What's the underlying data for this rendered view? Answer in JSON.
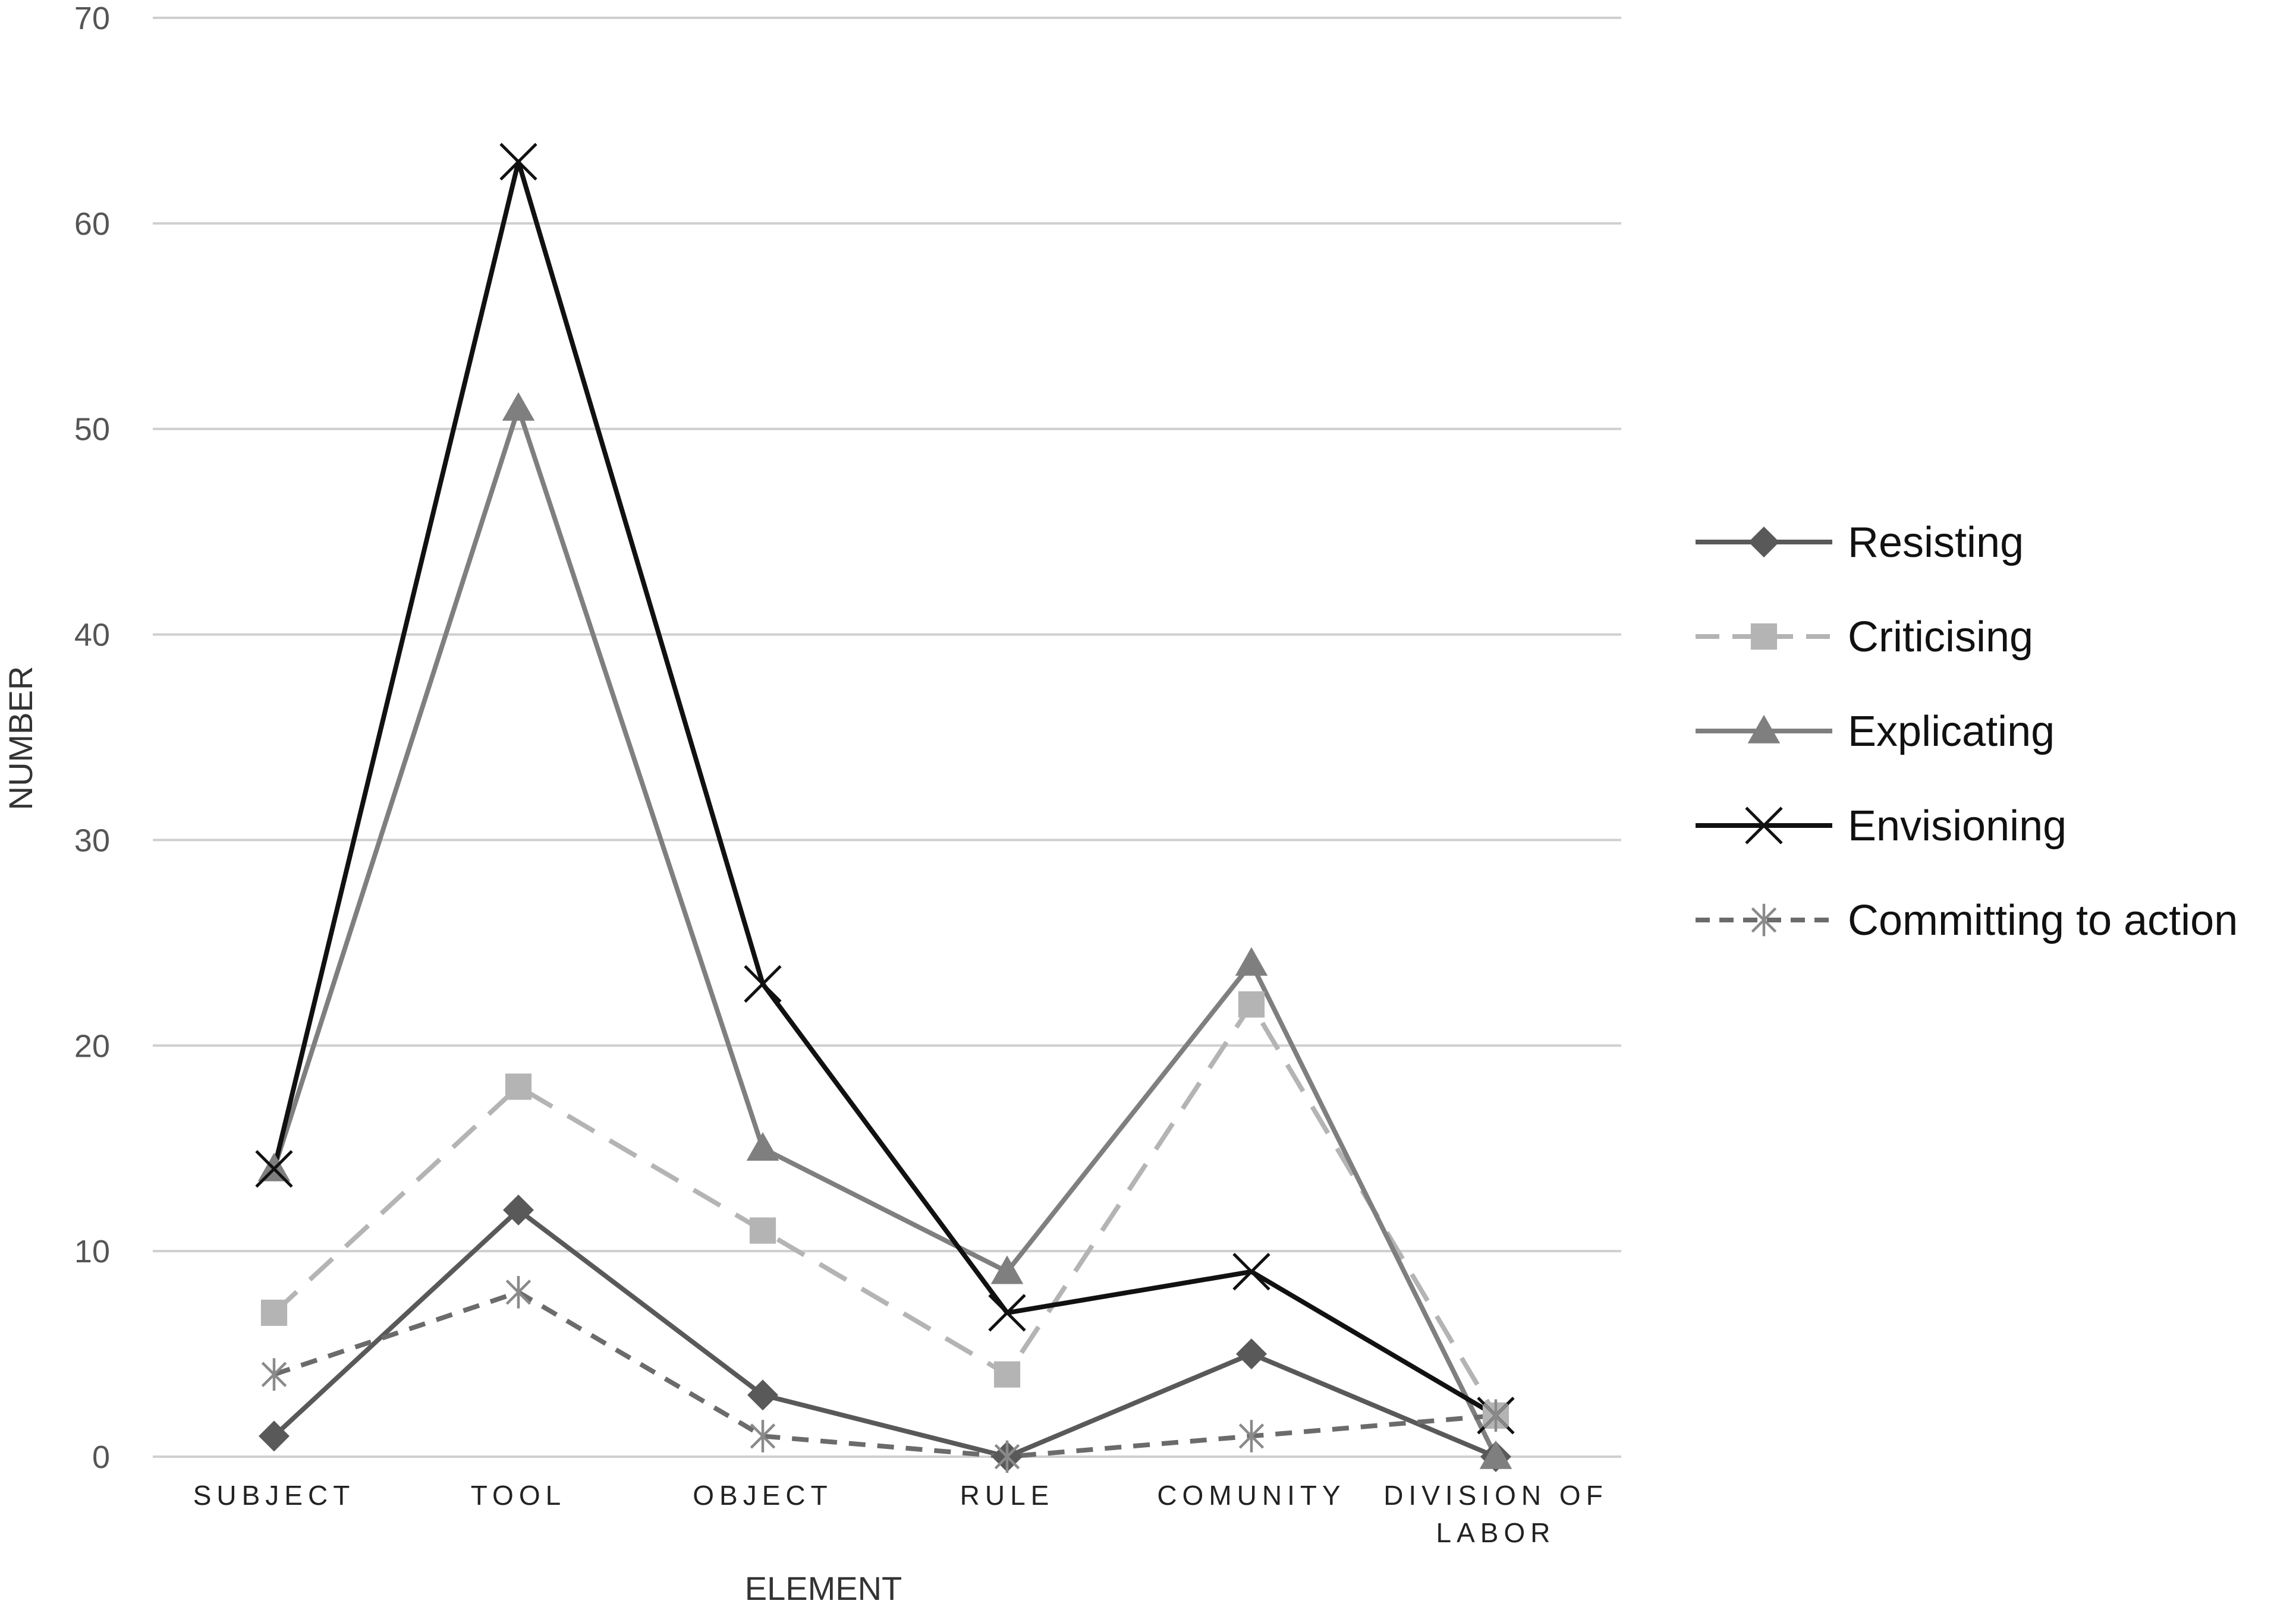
{
  "chart_data": {
    "type": "line",
    "title": "",
    "xlabel": "ELEMENT",
    "ylabel": "NUMBER",
    "ylim": [
      0,
      70
    ],
    "yticks": [
      0,
      10,
      20,
      30,
      40,
      50,
      60,
      70
    ],
    "grid": "horizontal",
    "legend_position": "right",
    "categories": [
      [
        "SUBJECT"
      ],
      [
        "TOOL"
      ],
      [
        "OBJECT"
      ],
      [
        "RULE"
      ],
      [
        "COMUNITY"
      ],
      [
        "DIVISION OF",
        "LABOR"
      ]
    ],
    "series": [
      {
        "name": "Resisting",
        "values": [
          1,
          12,
          3,
          0,
          5,
          0
        ],
        "color": "#595959",
        "marker": "diamond",
        "dash": "solid"
      },
      {
        "name": "Criticising",
        "values": [
          7,
          18,
          11,
          4,
          22,
          2
        ],
        "color": "#b4b4b4",
        "marker": "square",
        "dash": "long-dash"
      },
      {
        "name": "Explicating",
        "values": [
          14,
          51,
          15,
          9,
          24,
          0
        ],
        "color": "#7f7f7f",
        "marker": "triangle",
        "dash": "solid"
      },
      {
        "name": "Envisioning",
        "values": [
          14,
          63,
          23,
          7,
          9,
          2
        ],
        "color": "#111111",
        "marker": "x",
        "dash": "solid"
      },
      {
        "name": "Committing to action",
        "values": [
          4,
          8,
          1,
          0,
          1,
          2
        ],
        "color": "#6b6b6b",
        "marker": "star",
        "dash": "short-dash"
      }
    ]
  }
}
